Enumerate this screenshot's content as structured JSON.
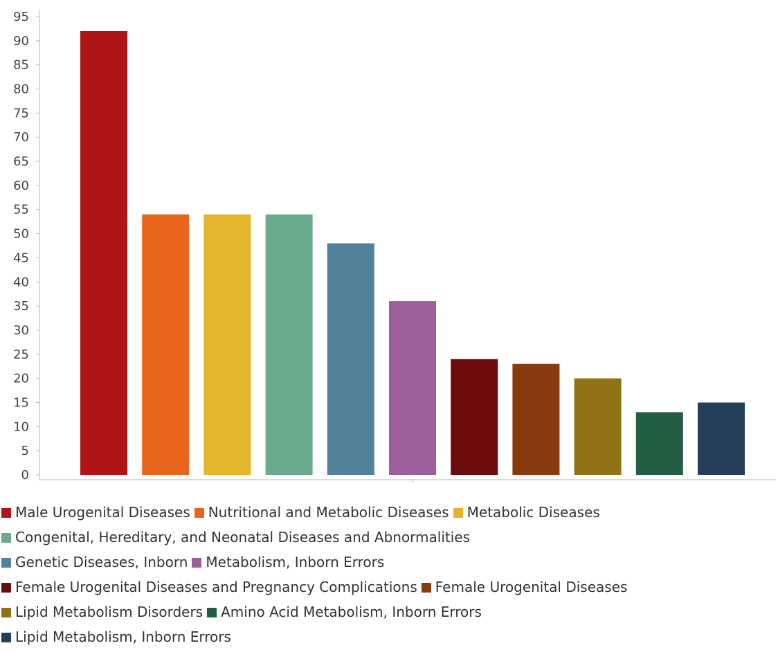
{
  "chart_data": {
    "type": "bar",
    "categories": [
      "Male Urogenital Diseases",
      "Nutritional and Metabolic Diseases",
      "Metabolic Diseases",
      "Congenital, Hereditary, and Neonatal Diseases and Abnormalities",
      "Genetic Diseases, Inborn",
      "Metabolism, Inborn Errors",
      "Female Urogenital Diseases and Pregnancy Complications",
      "Female Urogenital Diseases",
      "Lipid Metabolism Disorders",
      "Amino Acid Metabolism, Inborn Errors",
      "Lipid Metabolism, Inborn Errors"
    ],
    "values": [
      92,
      54,
      54,
      54,
      48,
      36,
      24,
      23,
      20,
      13,
      15
    ],
    "colors": [
      "#b01515",
      "#e8641a",
      "#e3b52d",
      "#6aab8e",
      "#52829a",
      "#9d5f9b",
      "#6b0b0b",
      "#8a3a0f",
      "#927216",
      "#235e42",
      "#253f5b"
    ],
    "ylim": [
      0,
      95
    ],
    "yticks": [
      0,
      5,
      10,
      15,
      20,
      25,
      30,
      35,
      40,
      45,
      50,
      55,
      60,
      65,
      70,
      75,
      80,
      85,
      90,
      95
    ],
    "grid": false,
    "legend_position": "bottom",
    "legend_rows": [
      [
        0,
        1,
        2
      ],
      [
        3
      ],
      [
        4,
        5
      ],
      [
        6,
        7
      ],
      [
        8,
        9
      ],
      [
        10
      ]
    ]
  }
}
